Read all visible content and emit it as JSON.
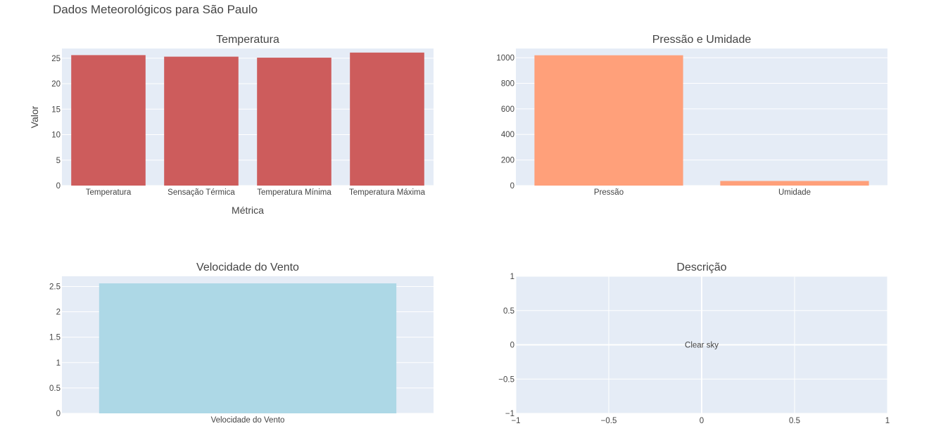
{
  "page_title": "Dados Meteorológicos para São Paulo",
  "colors": {
    "plot_bg": "#e5ecf6",
    "grid": "#ffffff",
    "temp_bar": "#cd5c5c",
    "pressure_bar": "#ffa07a",
    "wind_bar": "#add8e6"
  },
  "chart_data": [
    {
      "type": "bar",
      "title": "Temperatura",
      "xlabel": "Métrica",
      "ylabel": "Valor",
      "categories": [
        "Temperatura",
        "Sensação Térmica",
        "Temperatura Mínima",
        "Temperatura Máxima"
      ],
      "values": [
        25.6,
        25.3,
        25.1,
        26.1
      ],
      "ylim": [
        0,
        26.9
      ],
      "yticks": [
        0,
        5,
        10,
        15,
        20,
        25
      ],
      "grid": true
    },
    {
      "type": "bar",
      "title": "Pressão e Umidade",
      "xlabel": "",
      "ylabel": "",
      "categories": [
        "Pressão",
        "Umidade"
      ],
      "values": [
        1019,
        36
      ],
      "ylim": [
        0,
        1072
      ],
      "yticks": [
        0,
        200,
        400,
        600,
        800,
        1000
      ],
      "grid": true
    },
    {
      "type": "bar",
      "title": "Velocidade do Vento",
      "xlabel": "",
      "ylabel": "",
      "categories": [
        "Velocidade do Vento"
      ],
      "values": [
        2.56
      ],
      "ylim": [
        0,
        2.7
      ],
      "yticks": [
        0,
        0.5,
        1,
        1.5,
        2,
        2.5
      ],
      "ytick_labels": [
        "0",
        "0.5",
        "1",
        "1.5",
        "2",
        "2.5"
      ],
      "grid": true
    },
    {
      "type": "scatter",
      "title": "Descrição",
      "xlabel": "",
      "ylabel": "",
      "xlim": [
        -1,
        1
      ],
      "ylim": [
        -1,
        1
      ],
      "xticks": [
        -1,
        -0.5,
        0,
        0.5,
        1
      ],
      "xtick_labels": [
        "−1",
        "−0.5",
        "0",
        "0.5",
        "1"
      ],
      "yticks": [
        -1,
        -0.5,
        0,
        0.5,
        1
      ],
      "ytick_labels": [
        "−1",
        "−0.5",
        "0",
        "0.5",
        "1"
      ],
      "annotation": {
        "text": "Clear sky",
        "x": 0,
        "y": 0
      },
      "grid": true
    }
  ]
}
